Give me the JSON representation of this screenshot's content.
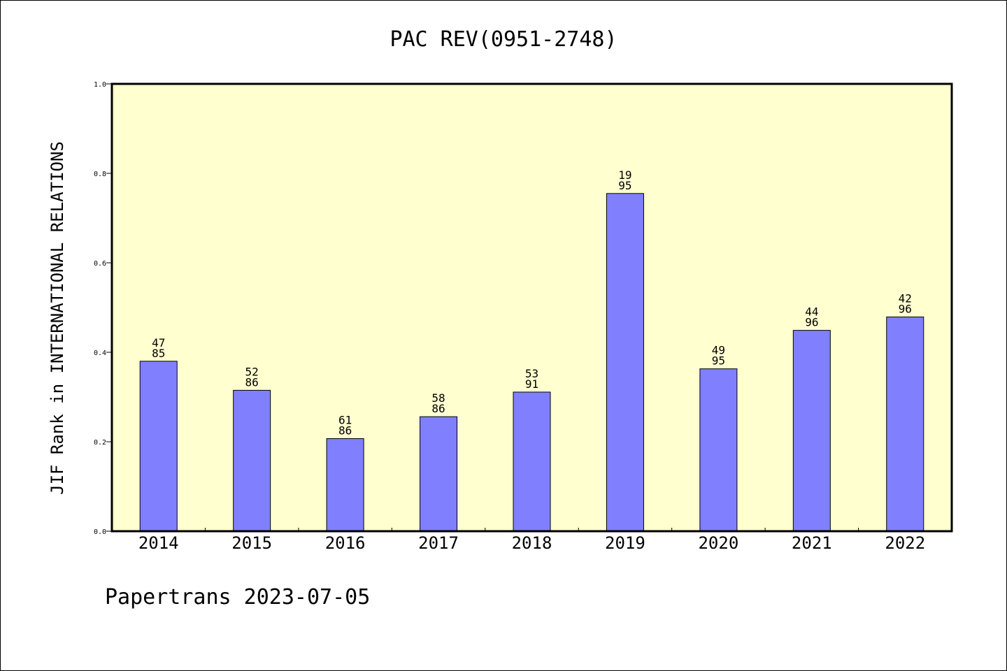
{
  "chart_data": {
    "type": "bar",
    "title": "PAC REV(0951-2748)",
    "xlabel": "",
    "ylabel": "JIF Rank in INTERNATIONAL RELATIONS",
    "ylim": [
      0,
      1.0
    ],
    "yticks": [
      "0.0",
      "0.2",
      "0.4",
      "0.6",
      "0.8",
      "1.0"
    ],
    "categories": [
      "2014",
      "2015",
      "2016",
      "2017",
      "2018",
      "2019",
      "2020",
      "2021",
      "2022"
    ],
    "values": [
      0.38,
      0.315,
      0.207,
      0.256,
      0.311,
      0.755,
      0.363,
      0.449,
      0.479
    ],
    "bar_labels": [
      [
        "47",
        "85"
      ],
      [
        "52",
        "86"
      ],
      [
        "61",
        "86"
      ],
      [
        "58",
        "86"
      ],
      [
        "53",
        "91"
      ],
      [
        "19",
        "95"
      ],
      [
        "49",
        "95"
      ],
      [
        "44",
        "96"
      ],
      [
        "42",
        "96"
      ]
    ],
    "grid": false,
    "colors": {
      "plot_background": "#ffffd0",
      "bar_fill": "#8080ff",
      "bar_stroke": "#000000"
    }
  },
  "footer": {
    "note": "Papertrans 2023-07-05"
  }
}
